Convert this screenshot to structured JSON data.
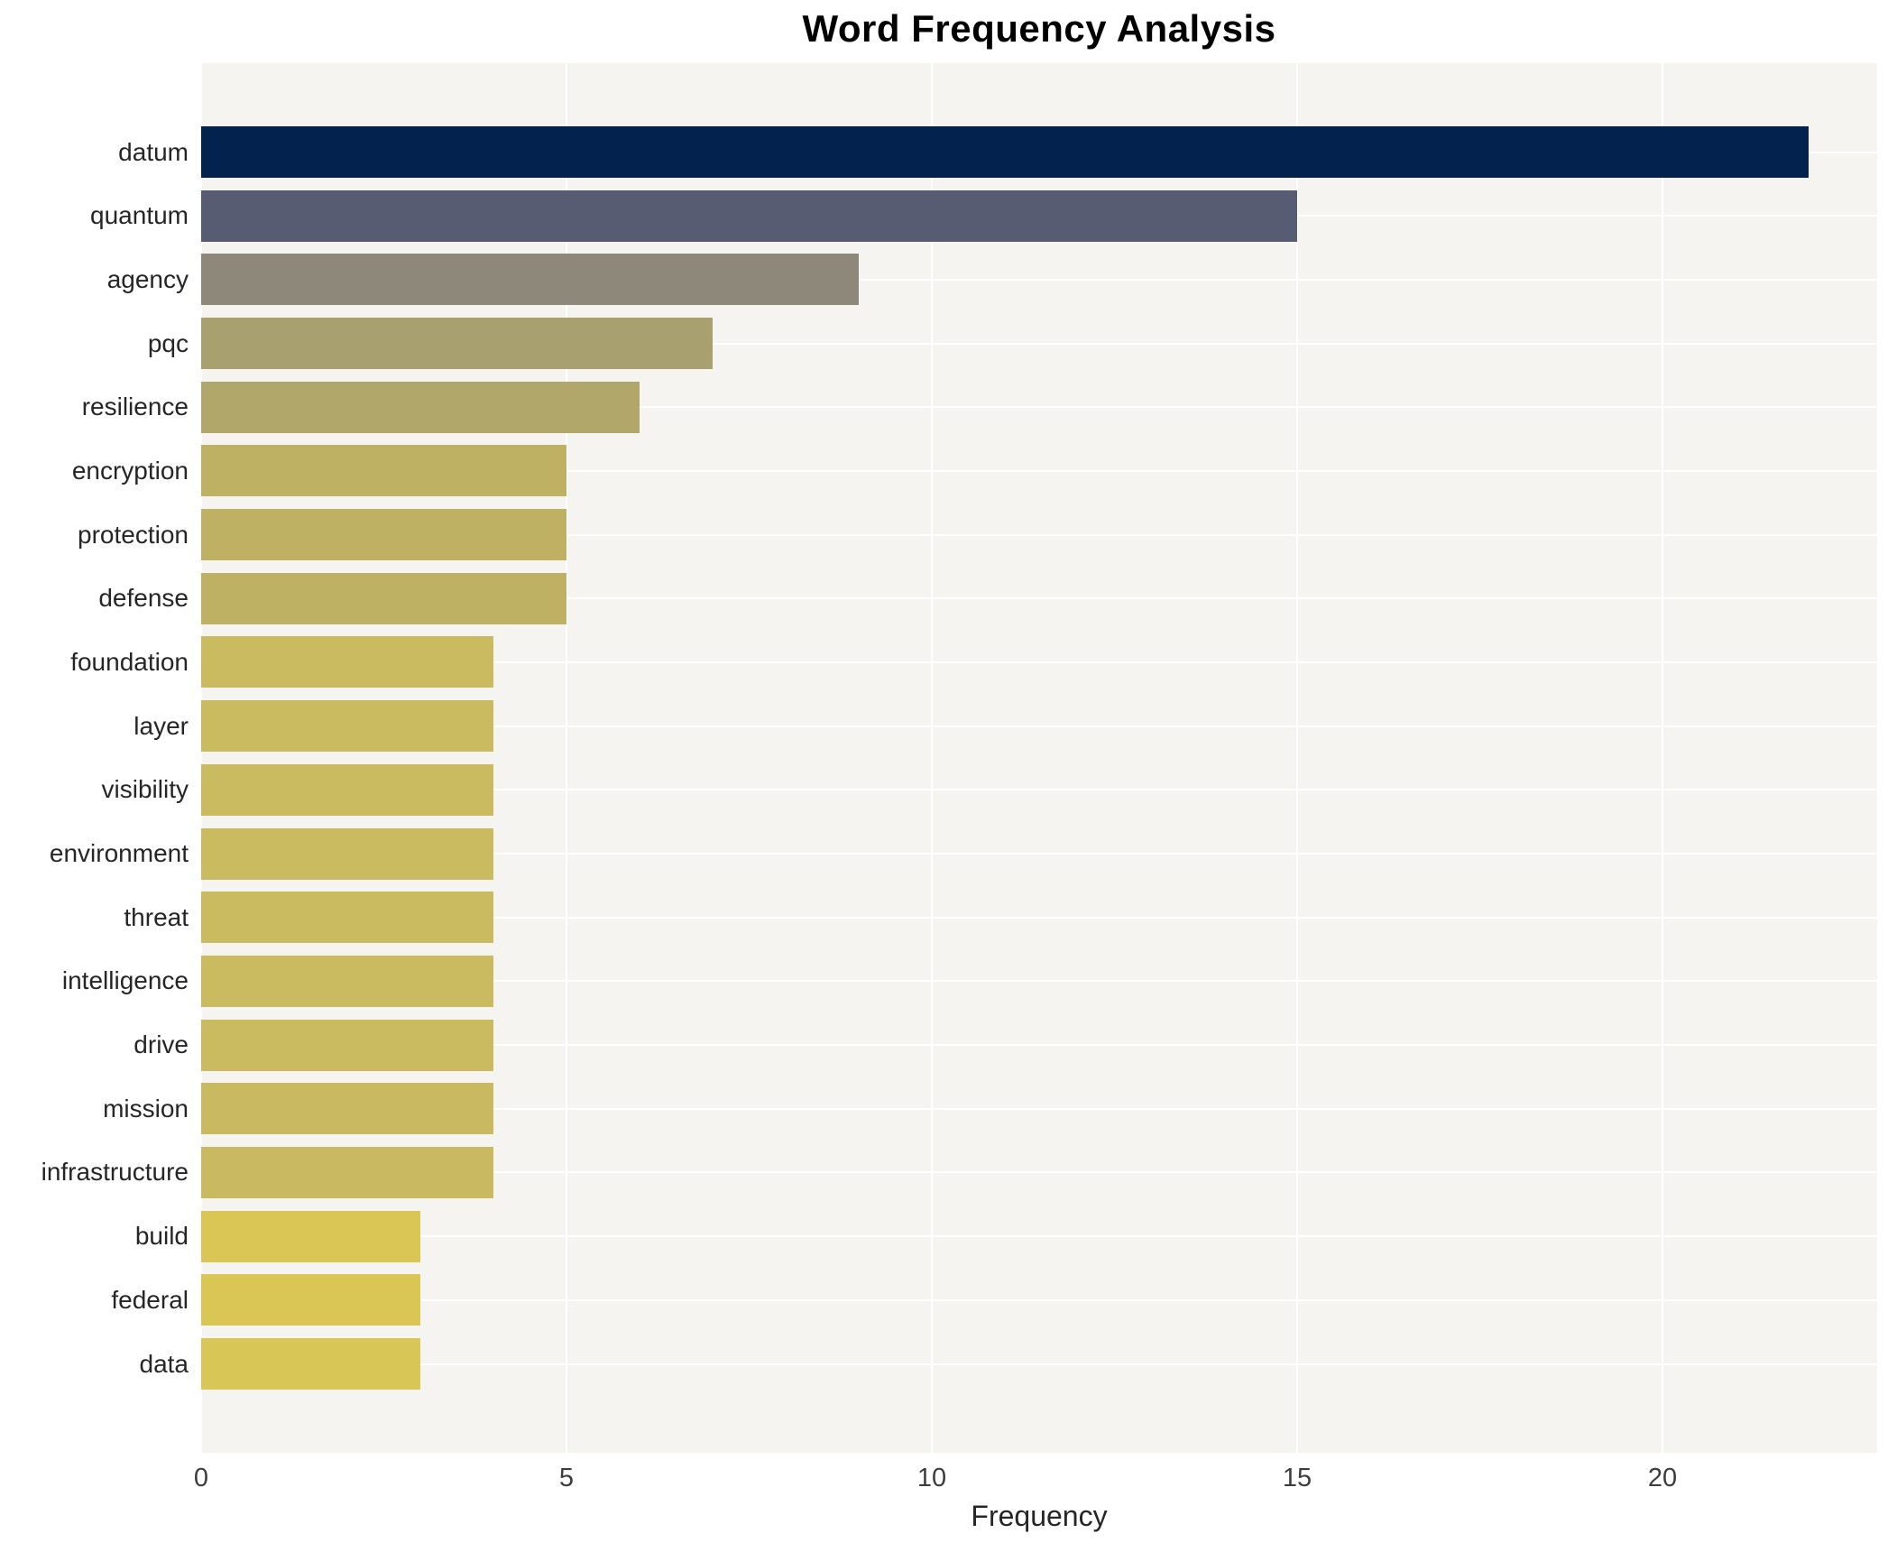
{
  "title": "Word Frequency Analysis",
  "chart_data": {
    "type": "bar",
    "orientation": "horizontal",
    "title": "Word Frequency Analysis",
    "xlabel": "Frequency",
    "ylabel": "",
    "categories": [
      "datum",
      "quantum",
      "agency",
      "pqc",
      "resilience",
      "encryption",
      "protection",
      "defense",
      "foundation",
      "layer",
      "visibility",
      "environment",
      "threat",
      "intelligence",
      "drive",
      "mission",
      "infrastructure",
      "build",
      "federal",
      "data"
    ],
    "values": [
      22,
      15,
      9,
      7,
      6,
      5,
      5,
      5,
      4,
      4,
      4,
      4,
      4,
      4,
      4,
      4,
      4,
      3,
      3,
      3
    ],
    "bar_colors": [
      "#03224e",
      "#575c72",
      "#8e887a",
      "#a9a06f",
      "#b1a76a",
      "#bfb163",
      "#bfb163",
      "#bfb163",
      "#cabb60",
      "#cabb60",
      "#cabb60",
      "#cabb60",
      "#cabb60",
      "#cabb60",
      "#cabb60",
      "#c9ba61",
      "#c9ba61",
      "#d9c655",
      "#d9c655",
      "#d8c657"
    ],
    "x_ticks": [
      0,
      5,
      10,
      15,
      20
    ],
    "xlim": [
      0,
      22.94
    ],
    "grid": true,
    "legend": "none",
    "plot_bg": "#f5f4f1",
    "grid_color": "#ffffff"
  }
}
